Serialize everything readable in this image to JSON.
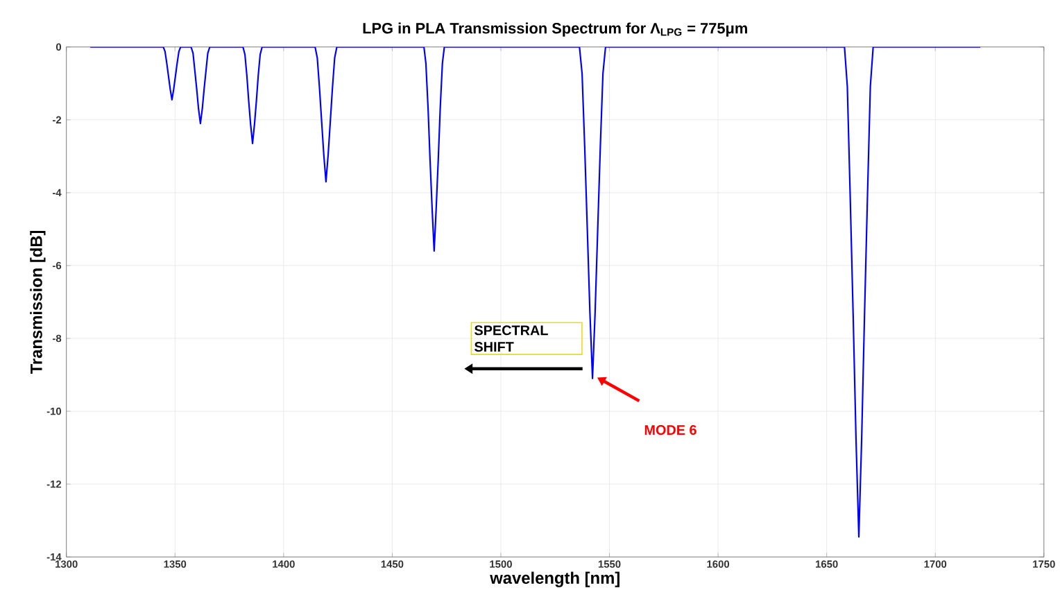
{
  "chart_data": {
    "type": "line",
    "title": "LPG in PLA Transmission Spectrum for Λ$_{LPG}$ = 775μm",
    "xlabel": "wavelength [nm]",
    "ylabel": "Transmission [dB]",
    "xlim": [
      1300,
      1750
    ],
    "xticks": [
      1300,
      1350,
      1400,
      1450,
      1500,
      1550,
      1600,
      1650,
      1700,
      1750
    ],
    "ylim": [
      -14,
      0
    ],
    "yticks": [
      -14,
      -12,
      -10,
      -8,
      -6,
      -4,
      -2,
      0
    ],
    "grid": true,
    "marker": "none",
    "line_style": "solid",
    "series": [
      {
        "color": "#0000ff",
        "x": [
          1311,
          1344.6,
          1345.4,
          1346.2,
          1347.0,
          1347.8,
          1348.6,
          1349.4,
          1350.2,
          1351.0,
          1351.8,
          1352.6,
          1357.4,
          1358.3,
          1359.1,
          1360.0,
          1360.8,
          1361.7,
          1362.6,
          1363.4,
          1364.3,
          1365.1,
          1366,
          1381.3,
          1382.2,
          1383.1,
          1383.9,
          1384.8,
          1385.7,
          1386.6,
          1387.5,
          1388.3,
          1389.2,
          1390.1,
          1414.5,
          1415.5,
          1416.5,
          1417.5,
          1418.5,
          1419.5,
          1420.5,
          1421.5,
          1422.5,
          1423.5,
          1424.5,
          1464.6,
          1465.5,
          1466.5,
          1467.4,
          1468.4,
          1469.3,
          1470.2,
          1471.2,
          1472.1,
          1473.1,
          1474.0,
          1536.2,
          1537.4,
          1538.6,
          1539.8,
          1541.0,
          1542.2,
          1543.4,
          1544.6,
          1545.8,
          1547.0,
          1548.2,
          1658.2,
          1659.5,
          1660.8,
          1662.2,
          1663.5,
          1664.8,
          1666.1,
          1667.4,
          1668.8,
          1670.1,
          1671.4,
          1720.7
        ],
        "values": [
          0,
          0,
          -0.12,
          -0.44,
          -0.8,
          -1.16,
          -1.45,
          -1.16,
          -0.8,
          -0.44,
          -0.12,
          0,
          0,
          -0.17,
          -0.63,
          -1.16,
          -1.68,
          -2.1,
          -1.68,
          -1.16,
          -0.63,
          -0.17,
          0,
          0,
          -0.21,
          -0.8,
          -1.46,
          -2.12,
          -2.65,
          -2.12,
          -1.46,
          -0.8,
          -0.21,
          0,
          0,
          -0.3,
          -1.11,
          -2.04,
          -2.96,
          -3.7,
          -2.96,
          -2.04,
          -1.11,
          -0.3,
          0,
          0,
          -0.45,
          -1.68,
          -3.08,
          -4.48,
          -5.6,
          -4.48,
          -3.08,
          -1.68,
          -0.45,
          0,
          0,
          -0.73,
          -2.73,
          -5.0,
          -7.28,
          -9.1,
          -7.28,
          -5.0,
          -2.73,
          -0.73,
          0,
          0,
          -1.08,
          -4.04,
          -7.4,
          -10.76,
          -13.45,
          -10.76,
          -7.4,
          -4.04,
          -1.08,
          0,
          0
        ]
      }
    ],
    "annotations": [
      "SPECTRAL SHIFT",
      "MODE 6"
    ]
  }
}
